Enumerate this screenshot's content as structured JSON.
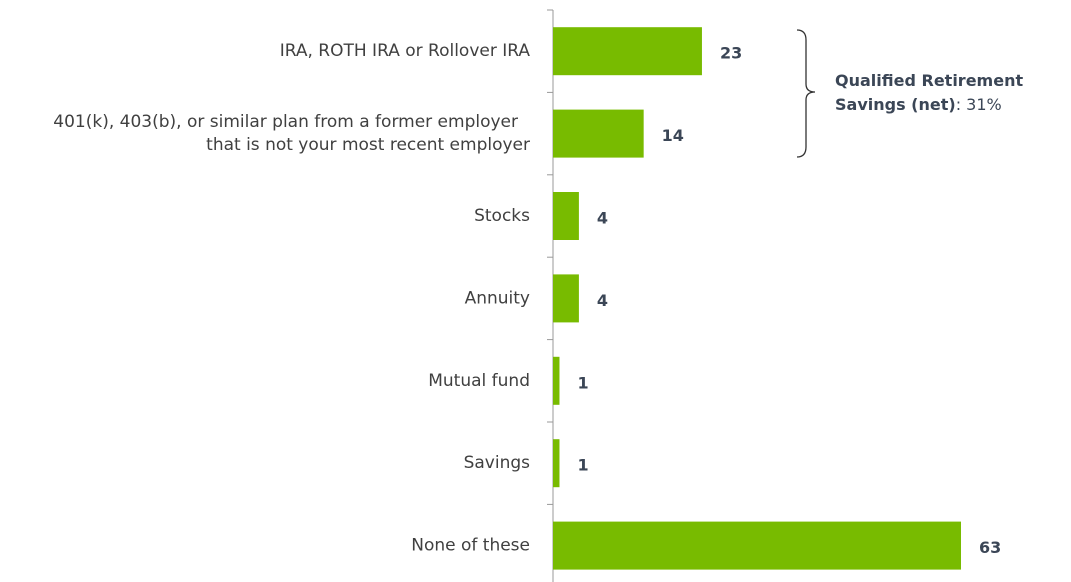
{
  "chart_data": {
    "type": "bar",
    "orientation": "horizontal",
    "categories": [
      "IRA, ROTH IRA or Rollover IRA",
      "401(k), 403(b), or similar plan from a former employer that is not your most recent employer",
      "Stocks",
      "Annuity",
      "Mutual fund",
      "Savings",
      "None of these"
    ],
    "values": [
      23,
      14,
      4,
      4,
      1,
      1,
      63
    ],
    "color": "#78bb00",
    "annotation": {
      "lines": [
        "Qualified Retirement",
        "Savings (net)"
      ],
      "net": ": 31%"
    }
  }
}
